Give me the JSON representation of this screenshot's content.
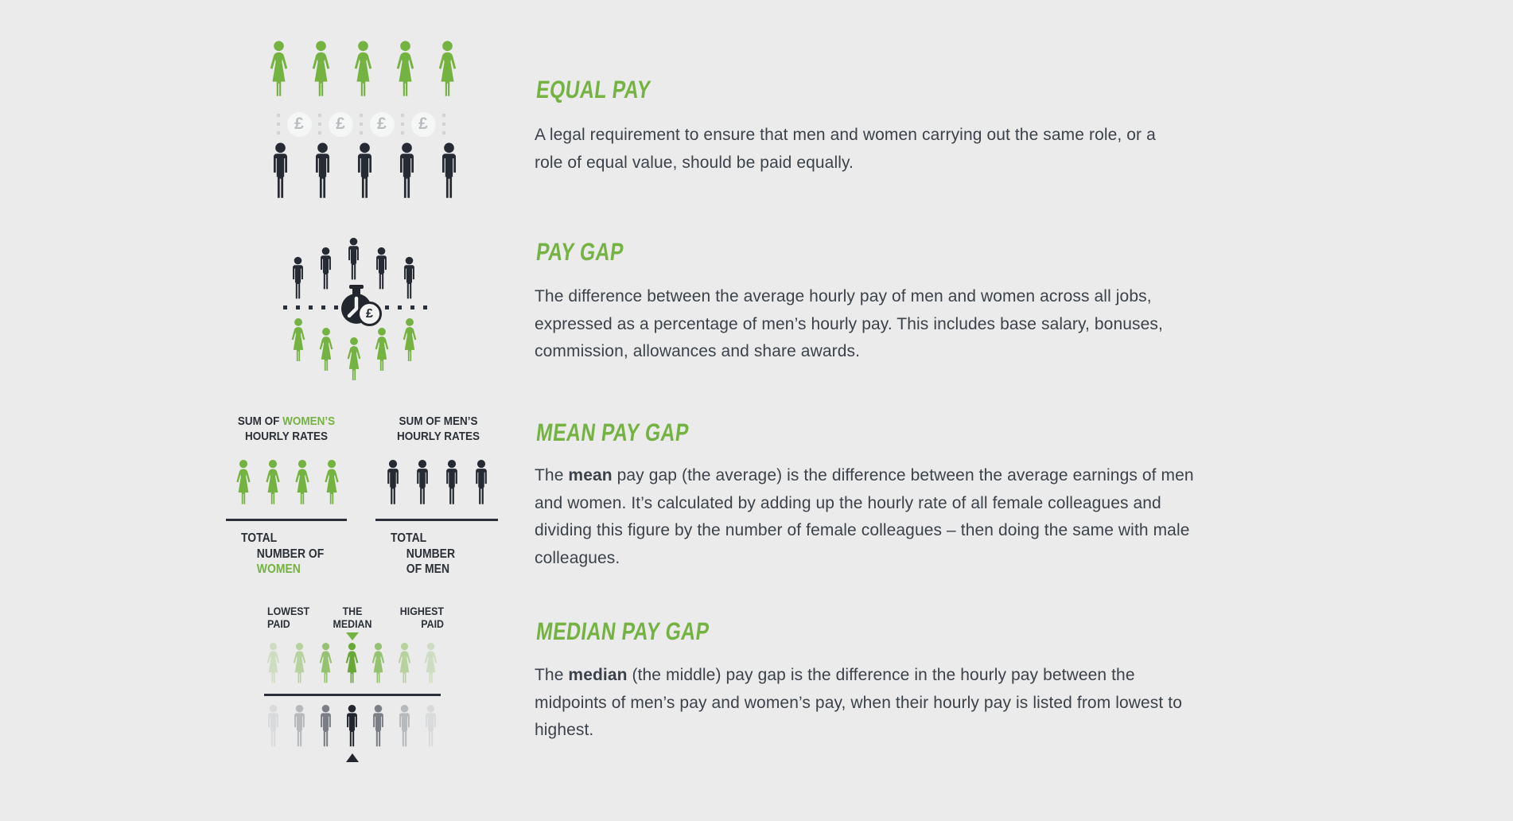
{
  "colors": {
    "green": "#74b341",
    "median_center_green": "#68a837",
    "median_green_opacities": [
      0.24,
      0.44,
      0.72,
      1,
      0.72,
      0.44,
      0.24
    ],
    "median_grays": [
      "#d8dadc",
      "#b7babd",
      "#7b7f85",
      "#22262d",
      "#7b7f85",
      "#b7babd",
      "#d8dadc"
    ],
    "dark": "#262b33",
    "label_dark": "#2b3037",
    "body_text": "#3c424a",
    "background": "#ebebeb"
  },
  "sections": {
    "equal_pay": {
      "heading": "EQUAL PAY",
      "body": "A legal requirement to ensure that men and women carrying out the same role, or a role of equal value, should be paid equally.",
      "women_count": 5,
      "men_count": 5,
      "coin_count": 4,
      "coin_symbol": "£"
    },
    "pay_gap": {
      "heading": "PAY GAP",
      "body": "The difference between the average hourly pay of men and women across all jobs, expressed as a percentage of men’s hourly pay. This includes base salary, bonuses, commission, allowances and share awards.",
      "men_count": 5,
      "women_count": 5,
      "coin_symbol": "£"
    },
    "mean_pay_gap": {
      "heading": "MEAN PAY GAP",
      "body": {
        "pre": "The ",
        "bold": "mean",
        "post": " pay gap (the average) is the difference between the average earnings of men and women. It’s calculated by adding up the hourly rate of all female colleagues and dividing this figure by the number of female colleagues – then doing the same with male colleagues."
      },
      "women": {
        "label_pre": "SUM OF ",
        "label_highlight": "WOMEN’S",
        "label_line2": "HOURLY RATES",
        "count": 4,
        "total_lines": [
          "TOTAL",
          "NUMBER OF",
          "WOMEN"
        ],
        "total_highlight_index": 2
      },
      "men": {
        "label_line1": "SUM OF MEN’S",
        "label_line2": "HOURLY RATES",
        "count": 4,
        "total_lines": [
          "TOTAL",
          "NUMBER",
          "OF MEN"
        ],
        "total_highlight_index": -1
      }
    },
    "median_pay_gap": {
      "heading": "MEDIAN PAY GAP",
      "body": {
        "pre": "The ",
        "bold": "median",
        "post": " (the middle) pay gap is the difference in the hourly pay between the midpoints of men’s pay and women’s pay, when their hourly pay is listed from lowest to highest."
      },
      "labels": {
        "lowest": [
          "LOWEST",
          "PAID"
        ],
        "median": [
          "THE",
          "MEDIAN"
        ],
        "highest": [
          "HIGHEST",
          "PAID"
        ]
      },
      "women_count": 7,
      "men_count": 7
    }
  }
}
